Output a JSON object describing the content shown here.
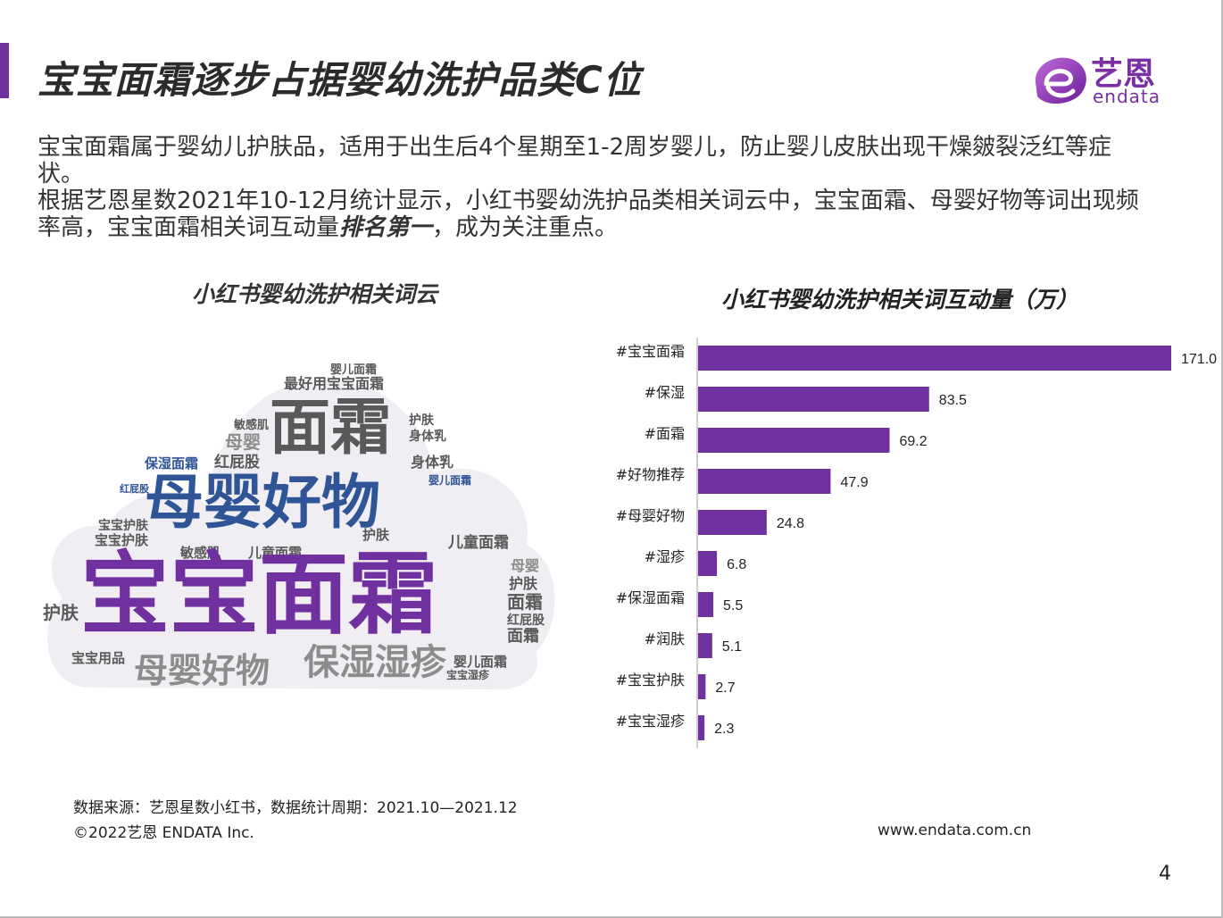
{
  "slide": {
    "title": "宝宝面霜逐步占据婴幼洗护品类C位",
    "description_1": "宝宝面霜属于婴幼儿护肤品，适用于出生后4个星期至1-2周岁婴儿，防止婴儿皮肤出现干燥皴裂泛红等症状。",
    "description_2_prefix": "根据艺恩星数2021年10-12月统计显示，小红书婴幼洗护品类相关词云中，宝宝面霜、母婴好物等词出现频率高，宝宝面霜相关词互动量",
    "description_2_emphasis": "排名第一",
    "description_2_suffix": "，成为关注重点。",
    "source": "数据来源：艺恩星数小红书，数据统计周期：2021.10—2021.12",
    "copyright": "©2022艺恩 ENDATA Inc.",
    "website": "www.endata.com.cn",
    "page_number": "4"
  },
  "logo": {
    "name": "艺恩",
    "sub": "endata",
    "color": "#7a2fa3"
  },
  "colors": {
    "accent": "#7030a0",
    "bar": "#7030a0",
    "cloud_blue": "#2f5597",
    "cloud_purple": "#7030a0",
    "cloud_gray": "#595959"
  },
  "word_cloud": {
    "title": "小红书婴幼洗护相关词云",
    "words": [
      {
        "text": "宝宝面霜",
        "color": "#7030a0"
      },
      {
        "text": "母婴好物",
        "color": "#2f5597"
      },
      {
        "text": "面霜",
        "color": "#595959"
      },
      {
        "text": "母婴好物",
        "color": "#8c8c8c"
      },
      {
        "text": "保湿湿疹",
        "color": "#8c8c8c"
      },
      {
        "text": "最好用宝宝面霜",
        "color": "#595959"
      },
      {
        "text": "婴儿面霜",
        "color": "#595959"
      },
      {
        "text": "保湿面霜",
        "color": "#595959"
      },
      {
        "text": "红屁股",
        "color": "#2f5597"
      },
      {
        "text": "身体乳",
        "color": "#595959"
      },
      {
        "text": "护肤",
        "color": "#595959"
      },
      {
        "text": "儿童面霜",
        "color": "#595959"
      },
      {
        "text": "敏感肌",
        "color": "#595959"
      },
      {
        "text": "宝宝护肤",
        "color": "#595959"
      },
      {
        "text": "母婴",
        "color": "#8c8c8c"
      },
      {
        "text": "宝宝用品",
        "color": "#595959"
      },
      {
        "text": "保湿面霜",
        "color": "#2f5597"
      },
      {
        "text": "宝宝湿疹",
        "color": "#595959"
      },
      {
        "text": "婴儿面霜",
        "color": "#2f5597"
      },
      {
        "text": "红屁股",
        "color": "#595959"
      }
    ]
  },
  "chart_data": {
    "type": "bar",
    "orientation": "horizontal",
    "title": "小红书婴幼洗护相关词互动量（万）",
    "categories": [
      "#宝宝面霜",
      "#保湿",
      "#面霜",
      "#好物推荐",
      "#母婴好物",
      "#湿疹",
      "#保湿面霜",
      "#润肤",
      "#宝宝护肤",
      "#宝宝湿疹"
    ],
    "values": [
      171.0,
      83.5,
      69.2,
      47.9,
      24.8,
      6.8,
      5.5,
      5.1,
      2.7,
      2.3
    ],
    "value_labels": [
      "171.0",
      "83.5",
      "69.2",
      "47.9",
      "24.8",
      "6.8",
      "5.5",
      "5.1",
      "2.7",
      "2.3"
    ],
    "xlim": [
      0,
      171.0
    ],
    "grid": false,
    "legend": "none"
  }
}
